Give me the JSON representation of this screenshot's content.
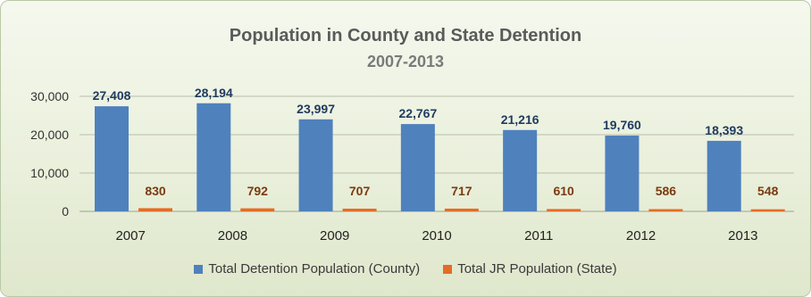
{
  "colors": {
    "county": "#4f81bd",
    "state": "#e46c26",
    "value_label": "#1f3a5f",
    "state_label": "#7b3a10"
  },
  "chart_data": {
    "type": "bar",
    "title": "Population in County and State Detention",
    "subtitle": "2007-2013",
    "categories": [
      "2007",
      "2008",
      "2009",
      "2010",
      "2011",
      "2012",
      "2013"
    ],
    "series": [
      {
        "name": "Total Detention Population (County)",
        "values": [
          27408,
          28194,
          23997,
          22767,
          21216,
          19760,
          18393
        ],
        "labels": [
          "27,408",
          "28,194",
          "23,997",
          "22,767",
          "21,216",
          "19,760",
          "18,393"
        ]
      },
      {
        "name": "Total JR Population (State)",
        "values": [
          830,
          792,
          707,
          717,
          610,
          586,
          548
        ],
        "labels": [
          "830",
          "792",
          "707",
          "717",
          "610",
          "586",
          "548"
        ]
      }
    ],
    "ylim": [
      0,
      30000
    ],
    "yticks": [
      0,
      10000,
      20000,
      30000
    ],
    "ytick_labels": [
      "0",
      "10,000",
      "20,000",
      "30,000"
    ],
    "grid": true,
    "legend": "bottom"
  }
}
